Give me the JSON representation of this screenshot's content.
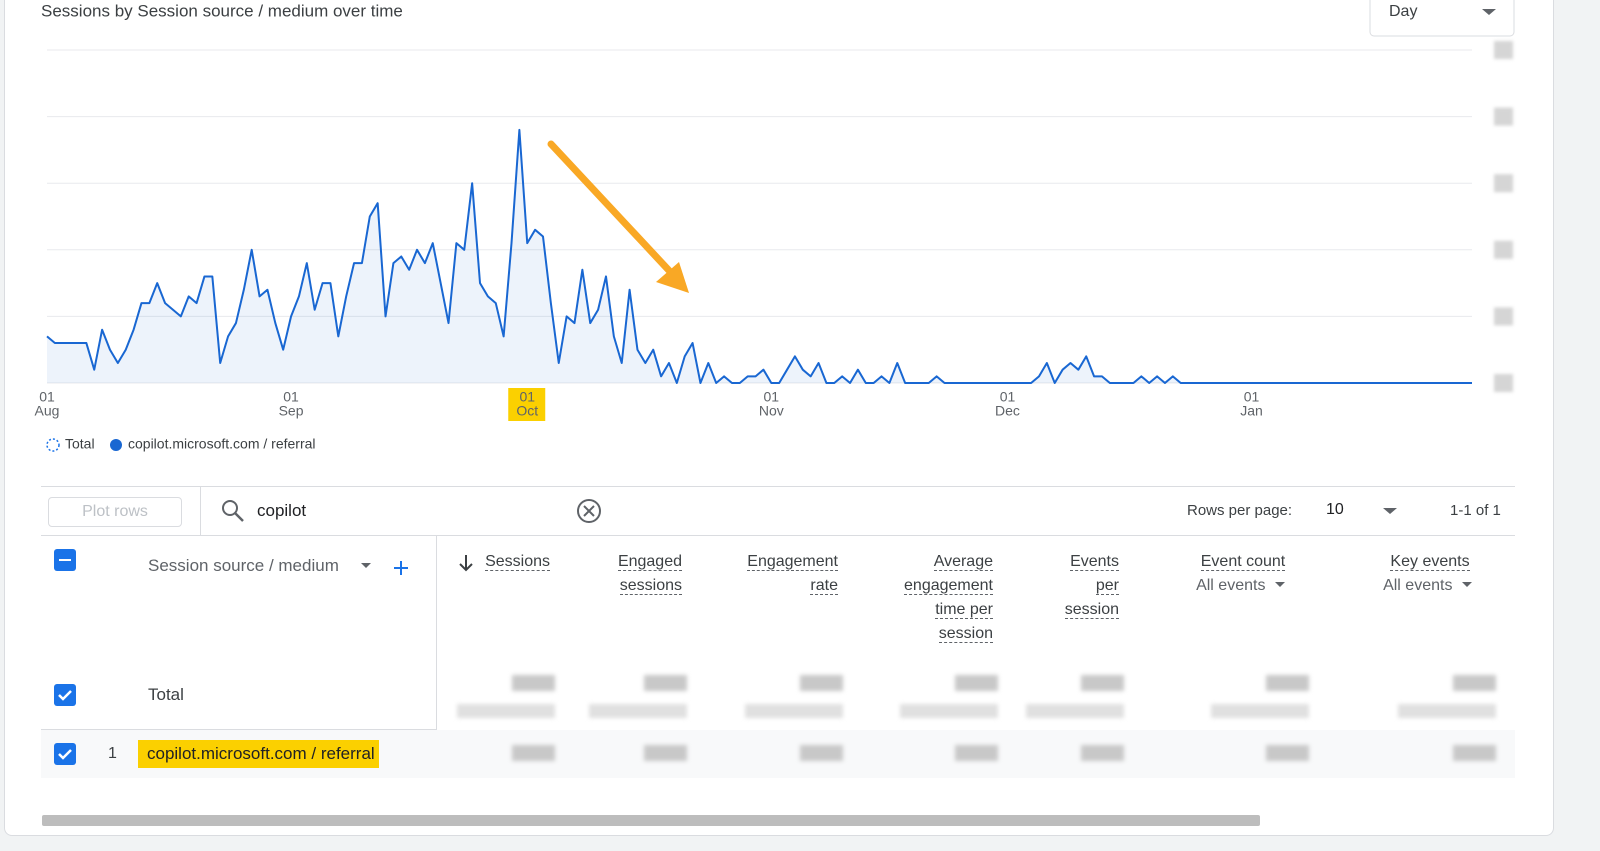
{
  "chart_data": {
    "type": "line",
    "title": "Sessions by Session source / medium over time",
    "xlim": [
      0,
      181
    ],
    "xticks": [
      {
        "value": 0,
        "label": "01",
        "month": "Aug"
      },
      {
        "value": 31,
        "label": "01",
        "month": "Sep"
      },
      {
        "value": 61,
        "label": "01",
        "month": "Oct"
      },
      {
        "value": 92,
        "label": "01",
        "month": "Nov"
      },
      {
        "value": 122,
        "label": "01",
        "month": "Dec"
      },
      {
        "value": 153,
        "label": "01",
        "month": "Jan"
      }
    ],
    "highlighted_xtick": 2,
    "ylim": [
      0,
      5
    ],
    "yticks": [
      0,
      1,
      2,
      3,
      4,
      5
    ],
    "grid": true,
    "total_legend": "Total",
    "series": [
      {
        "name": "copilot.microsoft.com / referral",
        "color": "#1967d2",
        "values": [
          0.7,
          0.6,
          0.6,
          0.6,
          0.6,
          0.6,
          0.2,
          0.8,
          0.5,
          0.3,
          0.5,
          0.8,
          1.2,
          1.2,
          1.5,
          1.2,
          1.1,
          1.0,
          1.3,
          1.2,
          1.6,
          1.6,
          0.3,
          0.7,
          0.9,
          1.4,
          2.0,
          1.3,
          1.4,
          0.9,
          0.5,
          1.0,
          1.3,
          1.8,
          1.1,
          1.5,
          1.5,
          0.7,
          1.3,
          1.8,
          1.8,
          2.5,
          2.7,
          1.0,
          1.8,
          1.9,
          1.7,
          2.0,
          1.8,
          2.1,
          1.5,
          0.9,
          2.1,
          2.0,
          3.0,
          1.5,
          1.3,
          1.2,
          0.7,
          2.1,
          3.8,
          2.1,
          2.3,
          2.2,
          1.2,
          0.3,
          1.0,
          0.9,
          1.7,
          0.9,
          1.1,
          1.6,
          0.7,
          0.3,
          1.4,
          0.5,
          0.3,
          0.5,
          0.1,
          0.3,
          0,
          0.4,
          0.6,
          0,
          0.3,
          0,
          0.1,
          0,
          0,
          0.1,
          0.1,
          0.2,
          0,
          0,
          0.2,
          0.4,
          0.2,
          0.1,
          0.3,
          0,
          0,
          0.1,
          0,
          0.2,
          0,
          0,
          0.1,
          0,
          0.3,
          0,
          0,
          0,
          0,
          0.1,
          0,
          0,
          0,
          0,
          0,
          0,
          0,
          0,
          0,
          0,
          0,
          0,
          0.1,
          0.3,
          0,
          0.2,
          0.3,
          0.2,
          0.4,
          0.1,
          0.1,
          0,
          0,
          0,
          0,
          0.1,
          0,
          0.1,
          0,
          0.1,
          0,
          0,
          0,
          0,
          0,
          0,
          0,
          0,
          0,
          0,
          0,
          0,
          0,
          0,
          0,
          0,
          0,
          0,
          0,
          0,
          0,
          0,
          0,
          0,
          0,
          0,
          0,
          0,
          0,
          0,
          0,
          0,
          0,
          0,
          0,
          0,
          0,
          0
        ]
      }
    ]
  },
  "controls": {
    "granularity": "Day"
  },
  "table": {
    "plot_rows": "Plot rows",
    "search": "copilot",
    "rows_per_page_label": "Rows per page:",
    "rows_per_page": "10",
    "pagination": "1-1 of 1",
    "dimension": "Session source / medium",
    "columns": [
      {
        "label": "Sessions"
      },
      {
        "label": "Engaged sessions"
      },
      {
        "label": "Engagement rate"
      },
      {
        "label": "Average engagement time per session"
      },
      {
        "label": "Events per session"
      },
      {
        "label": "Event count",
        "filter": "All events"
      },
      {
        "label": "Key events",
        "filter": "All events"
      }
    ],
    "total_label": "Total",
    "rows": [
      {
        "index": 1,
        "label": "copilot.microsoft.com / referral"
      }
    ]
  }
}
